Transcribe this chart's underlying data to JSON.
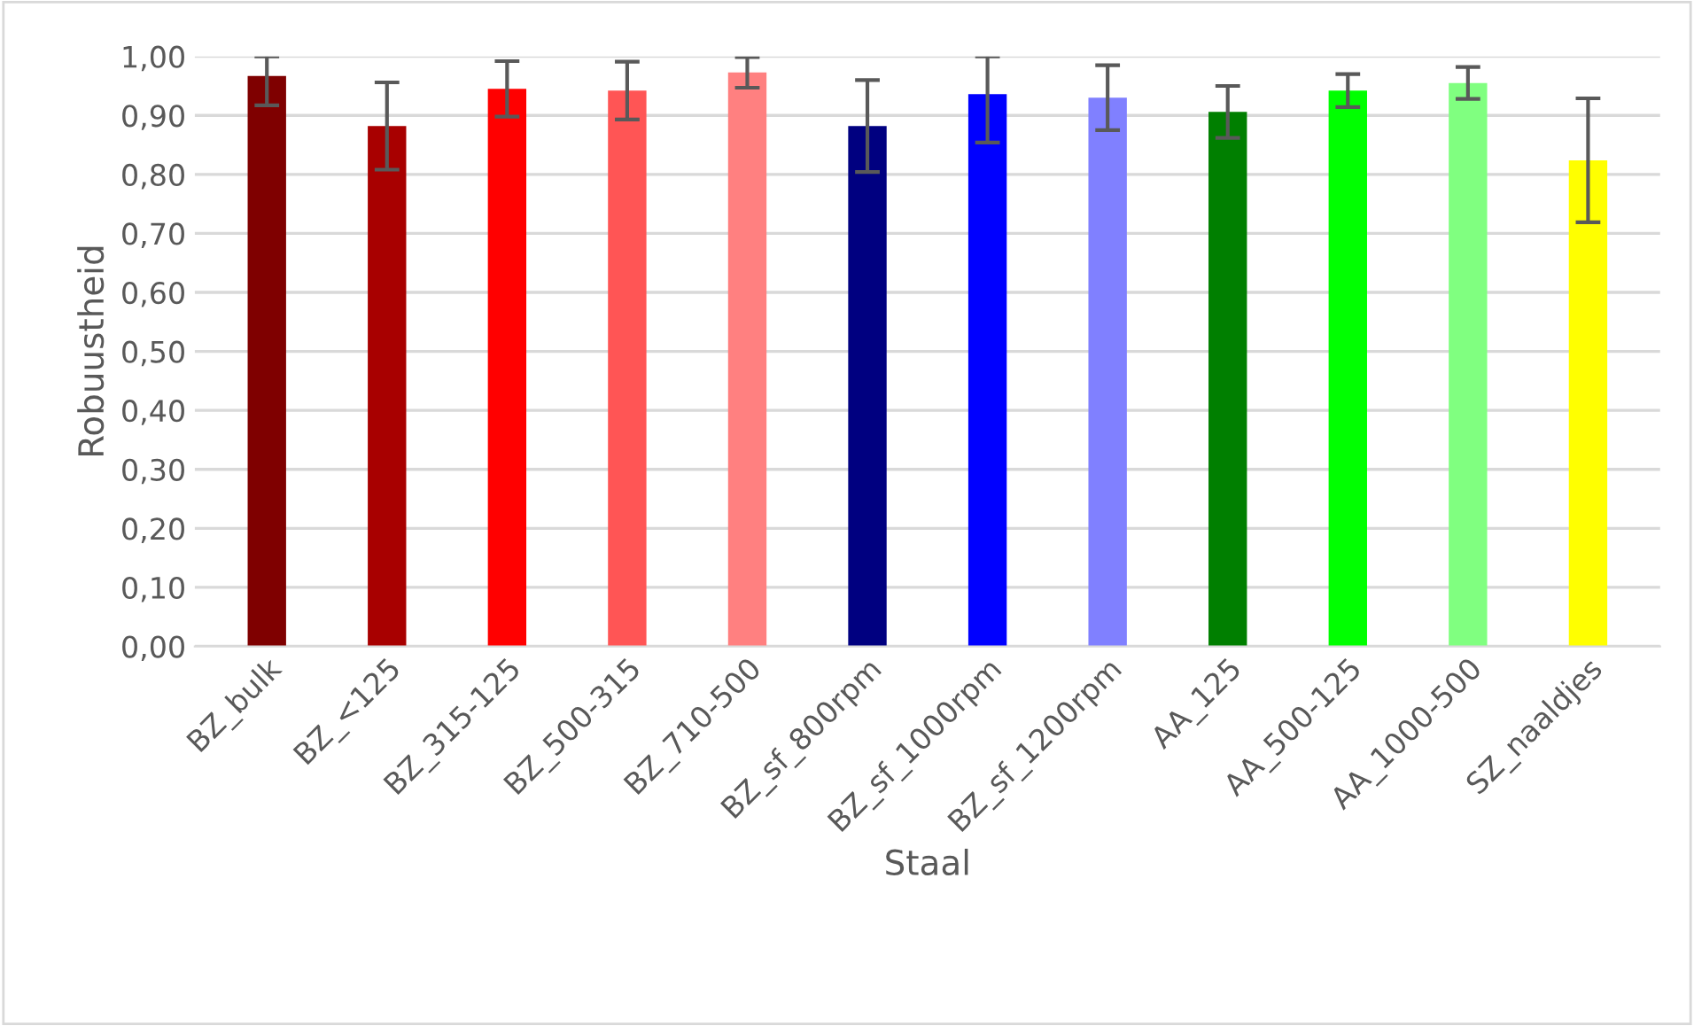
{
  "chart_data": {
    "type": "bar",
    "xlabel": "Staal",
    "ylabel": "Robuustheid",
    "categories": [
      "BZ_bulk",
      "BZ_<125",
      "BZ_315-125",
      "BZ_500-315",
      "BZ_710-500",
      "BZ_sf_800rpm",
      "BZ_sf_1000rpm",
      "BZ_sf_1200rpm",
      "AA_125",
      "AA_500-125",
      "AA_1000-500",
      "SZ_naaldjes"
    ],
    "values": [
      0.967,
      0.882,
      0.945,
      0.942,
      0.973,
      0.882,
      0.936,
      0.93,
      0.906,
      0.942,
      0.955,
      0.824
    ],
    "errors": [
      [
        0.917,
        1.0
      ],
      0.074,
      0.047,
      0.049,
      0.026,
      0.078,
      [
        0.854,
        1.0
      ],
      0.055,
      0.044,
      0.028,
      0.027,
      0.105
    ],
    "colors": [
      "#7f0000",
      "#a80000",
      "#ff0000",
      "#ff5555",
      "#ff8080",
      "#000080",
      "#0000ff",
      "#8080ff",
      "#007f00",
      "#00ff00",
      "#80ff80",
      "#ffff00"
    ],
    "ylim": [
      0,
      1
    ],
    "yticks": [
      {
        "value": 0,
        "label": "0,00"
      },
      {
        "value": 0.1,
        "label": "0,10"
      },
      {
        "value": 0.2,
        "label": "0,20"
      },
      {
        "value": 0.3,
        "label": "0,30"
      },
      {
        "value": 0.4,
        "label": "0,40"
      },
      {
        "value": 0.5,
        "label": "0,50"
      },
      {
        "value": 0.6,
        "label": "0,60"
      },
      {
        "value": 0.7,
        "label": "0,70"
      },
      {
        "value": 0.8,
        "label": "0,80"
      },
      {
        "value": 0.9,
        "label": "0,90"
      },
      {
        "value": 1,
        "label": "1,00"
      }
    ],
    "grid": "y"
  }
}
